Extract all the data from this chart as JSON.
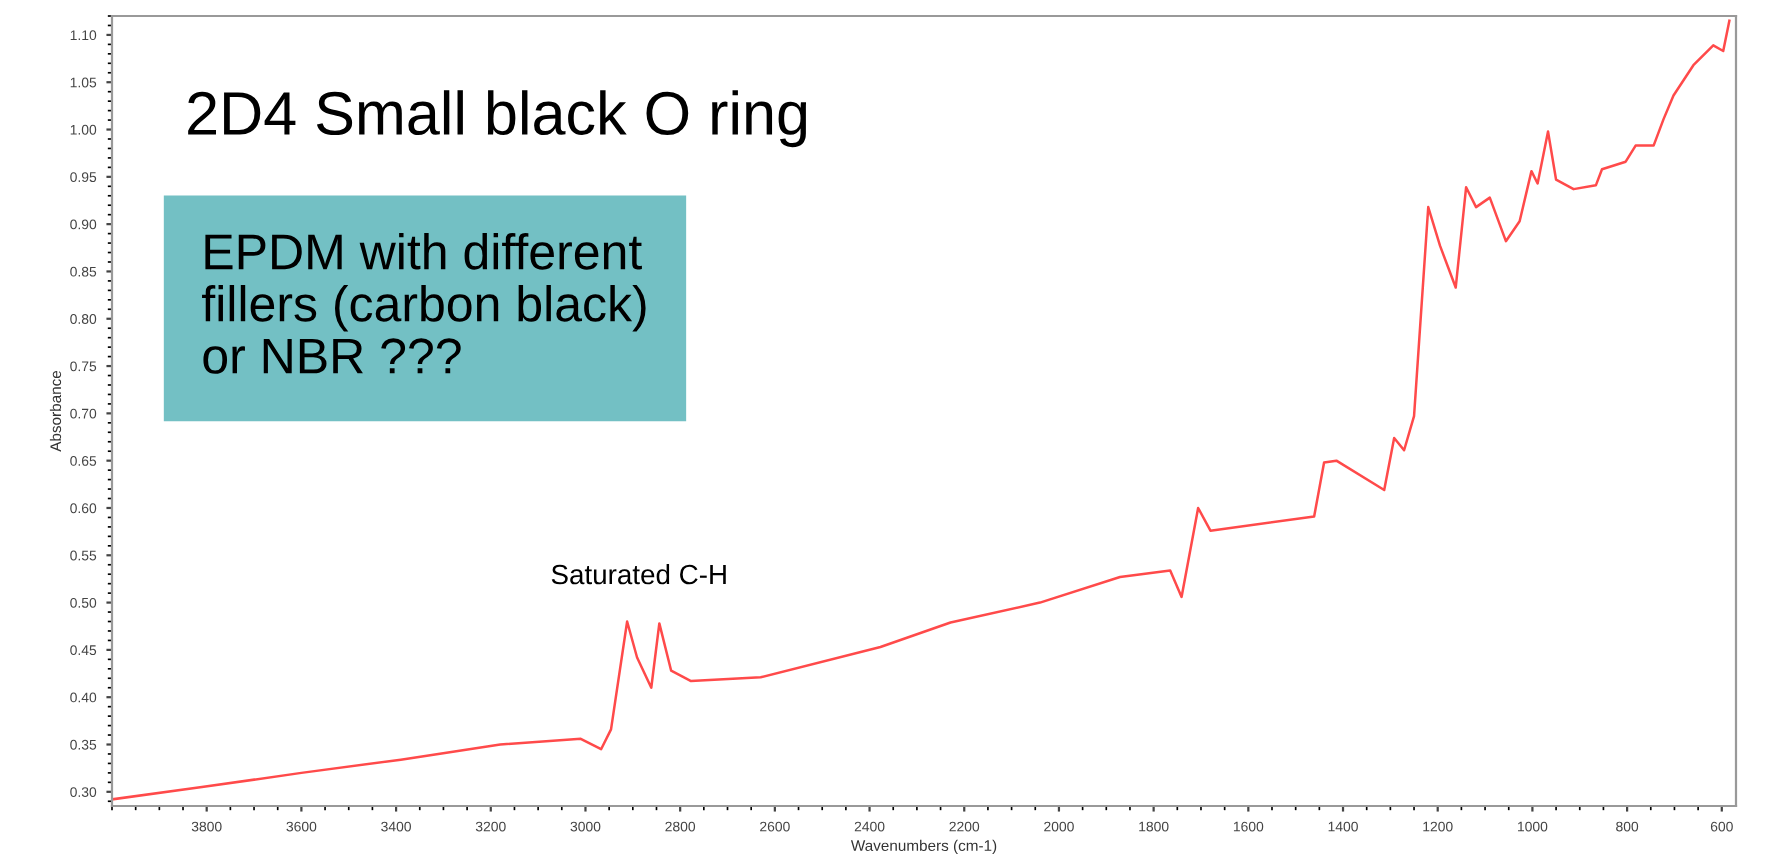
{
  "chart_data": {
    "type": "line",
    "xlabel": "Wavenumbers (cm-1)",
    "ylabel": "Absorbance",
    "x": [
      4000,
      3810,
      3600,
      3390,
      3180,
      3010,
      2967,
      2946,
      2912,
      2891,
      2861,
      2844,
      2819,
      2777,
      2630,
      2377,
      2229,
      2040,
      1871,
      1765,
      1741,
      1706,
      1680,
      1461,
      1440,
      1414,
      1313,
      1292,
      1271,
      1250,
      1220,
      1195,
      1162,
      1140,
      1119,
      1090,
      1056,
      1027,
      1002,
      989,
      967,
      950,
      913,
      866,
      853,
      803,
      782,
      744,
      723,
      702,
      660,
      618,
      597,
      584
    ],
    "series": [
      {
        "color": "#ff4a4a",
        "values": [
          0.292,
          0.305,
          0.32,
          0.334,
          0.35,
          0.356,
          0.345,
          0.366,
          0.48,
          0.442,
          0.41,
          0.478,
          0.428,
          0.417,
          0.421,
          0.453,
          0.479,
          0.5,
          0.527,
          0.534,
          0.506,
          0.6,
          0.576,
          0.591,
          0.648,
          0.65,
          0.619,
          0.674,
          0.661,
          0.697,
          0.918,
          0.877,
          0.833,
          0.939,
          0.918,
          0.928,
          0.882,
          0.903,
          0.956,
          0.943,
          0.998,
          0.947,
          0.937,
          0.941,
          0.958,
          0.966,
          0.983,
          0.983,
          1.011,
          1.036,
          1.068,
          1.089,
          1.083,
          1.115
        ]
      }
    ],
    "xlim": [
      4000,
      570
    ],
    "ylim": [
      0.285,
      1.12
    ],
    "xticks": [
      3800,
      3600,
      3400,
      3200,
      3000,
      2800,
      2600,
      2400,
      2200,
      2000,
      1800,
      1600,
      1400,
      1200,
      1000,
      800,
      600
    ],
    "yticks": [
      {
        "value": 0.3,
        "label": "0.30"
      },
      {
        "value": 0.35,
        "label": "0.35"
      },
      {
        "value": 0.4,
        "label": "0.40"
      },
      {
        "value": 0.45,
        "label": "0.45"
      },
      {
        "value": 0.5,
        "label": "0.50"
      },
      {
        "value": 0.55,
        "label": "0.55"
      },
      {
        "value": 0.6,
        "label": "0.60"
      },
      {
        "value": 0.65,
        "label": "0.65"
      },
      {
        "value": 0.7,
        "label": "0.70"
      },
      {
        "value": 0.75,
        "label": "0.75"
      },
      {
        "value": 0.8,
        "label": "0.80"
      },
      {
        "value": 0.85,
        "label": "0.85"
      },
      {
        "value": 0.9,
        "label": "0.90"
      },
      {
        "value": 0.95,
        "label": "0.95"
      },
      {
        "value": 1.0,
        "label": "1.00"
      },
      {
        "value": 1.05,
        "label": "1.05"
      },
      {
        "value": 1.1,
        "label": "1.10"
      }
    ],
    "grid": false,
    "marker": "none",
    "line_style": "solid",
    "annotations": [
      "2D4 Small black O ring",
      "EPDM with different\nfillers (carbon black)\nor NBR ???",
      "Saturated C-H"
    ]
  }
}
